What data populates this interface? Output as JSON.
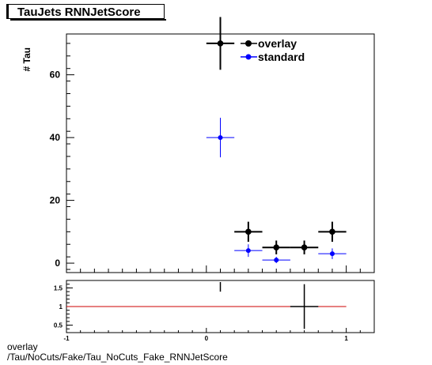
{
  "title": "TauJets RNNJetScore",
  "footer": {
    "line1": "overlay",
    "line2": "/Tau/NoCuts/Fake/Tau_NoCuts_Fake_RNNJetScore"
  },
  "colors": {
    "overlay": "#000000",
    "standard": "#0000ff",
    "ratio_line": "#cc0000"
  },
  "chart_data": [
    {
      "type": "scatter",
      "title": "TauJets RNNJetScore",
      "ylabel": "# Tau",
      "xlabel": "",
      "xlim": [
        -1,
        1.2
      ],
      "ylim": [
        -3,
        73
      ],
      "yticks": [
        0,
        20,
        40,
        60
      ],
      "xticks": [
        -1,
        0,
        1
      ],
      "grid": false,
      "legend": {
        "position": "top-right",
        "entries": [
          "overlay",
          "standard"
        ]
      },
      "series": [
        {
          "name": "overlay",
          "x": [
            0.1,
            0.3,
            0.5,
            0.7,
            0.9
          ],
          "xerr": [
            0.1,
            0.1,
            0.1,
            0.1,
            0.1
          ],
          "y": [
            70,
            10,
            5,
            5,
            10
          ],
          "yerr": [
            8.4,
            3.2,
            2.2,
            2.2,
            3.2
          ]
        },
        {
          "name": "standard",
          "x": [
            0.1,
            0.3,
            0.5,
            0.9
          ],
          "xerr": [
            0.1,
            0.1,
            0.1,
            0.1
          ],
          "y": [
            40,
            4,
            1,
            3
          ],
          "yerr": [
            6.3,
            2.0,
            1.0,
            1.7
          ]
        }
      ]
    },
    {
      "type": "scatter",
      "xlim": [
        -1,
        1.2
      ],
      "ylim": [
        0.3,
        1.7
      ],
      "yticks": [
        0.5,
        1,
        1.5
      ],
      "xticks": [
        -1,
        0,
        1
      ],
      "reference_line": 1,
      "series": [
        {
          "x": [
            0.7
          ],
          "xerr": [
            0.1
          ],
          "y": [
            1.0
          ],
          "yerr": [
            0.6
          ]
        }
      ]
    }
  ]
}
